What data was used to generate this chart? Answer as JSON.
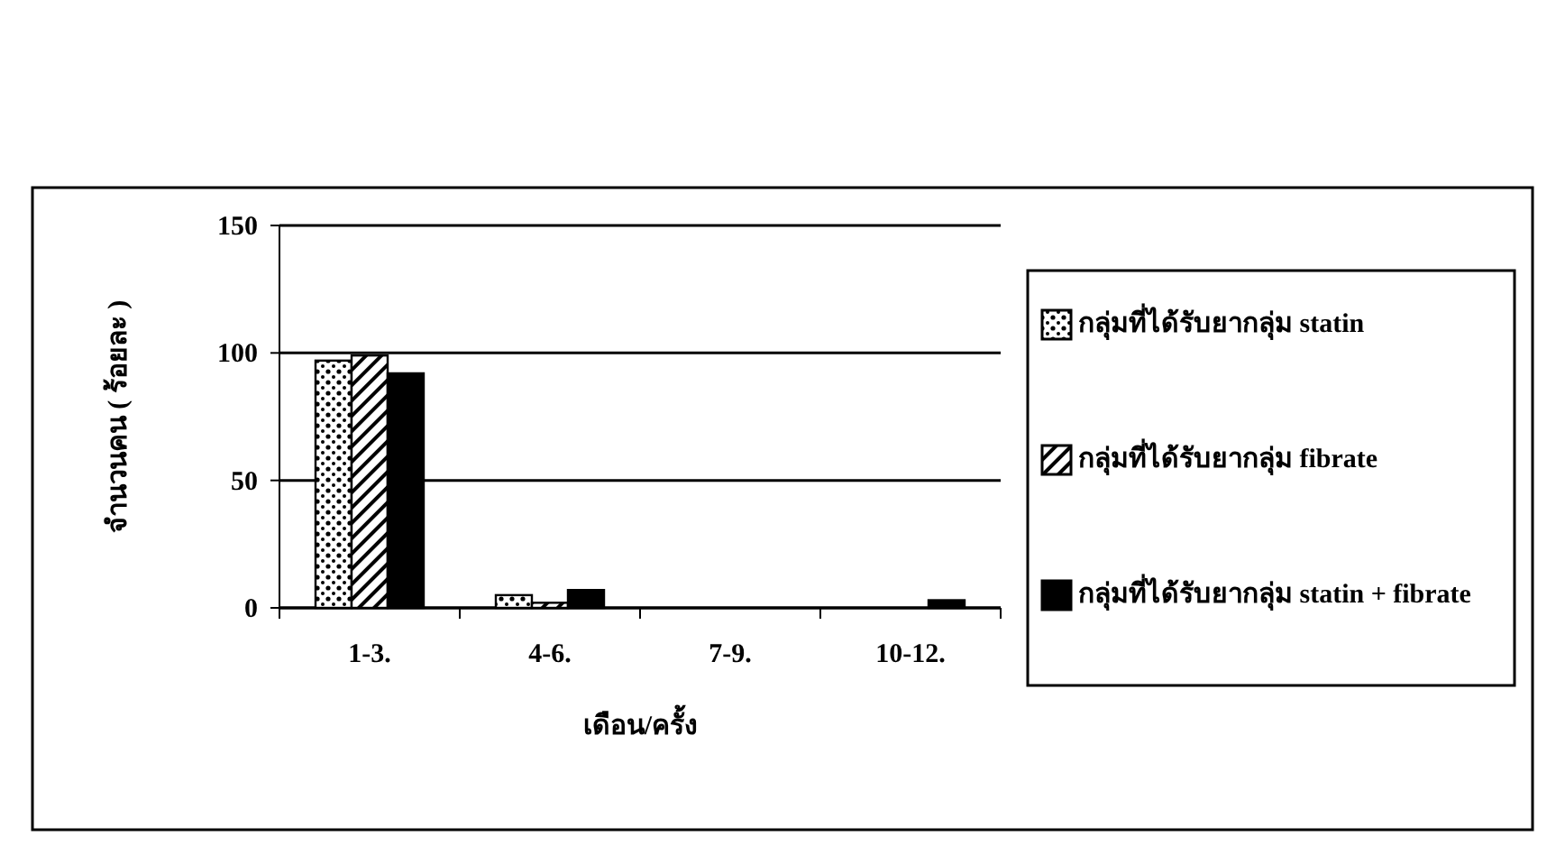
{
  "chart_data": {
    "type": "bar",
    "xlabel": "เดือน/ครั้ง",
    "ylabel": "จำนวนคน ( ร้อยละ )",
    "categories": [
      "1-3.",
      "4-6.",
      "7-9.",
      "10-12."
    ],
    "series": [
      {
        "name": "กลุ่มที่ได้รับยากลุ่ม statin",
        "color": "#000000",
        "values": [
          97,
          5,
          0,
          0
        ]
      },
      {
        "name": "กลุ่มที่ได้รับยากลุ่ม fibrate",
        "color": "#000000",
        "values": [
          99,
          2,
          0,
          0
        ]
      },
      {
        "name": "กลุ่มที่ได้รับยากลุ่ม statin + fibrate",
        "color": "#000000",
        "values": [
          92,
          7,
          0,
          3
        ]
      }
    ],
    "ylim": [
      0,
      150
    ],
    "yticks": [
      0,
      50,
      100,
      150
    ],
    "grid": "y",
    "legend": "right"
  }
}
